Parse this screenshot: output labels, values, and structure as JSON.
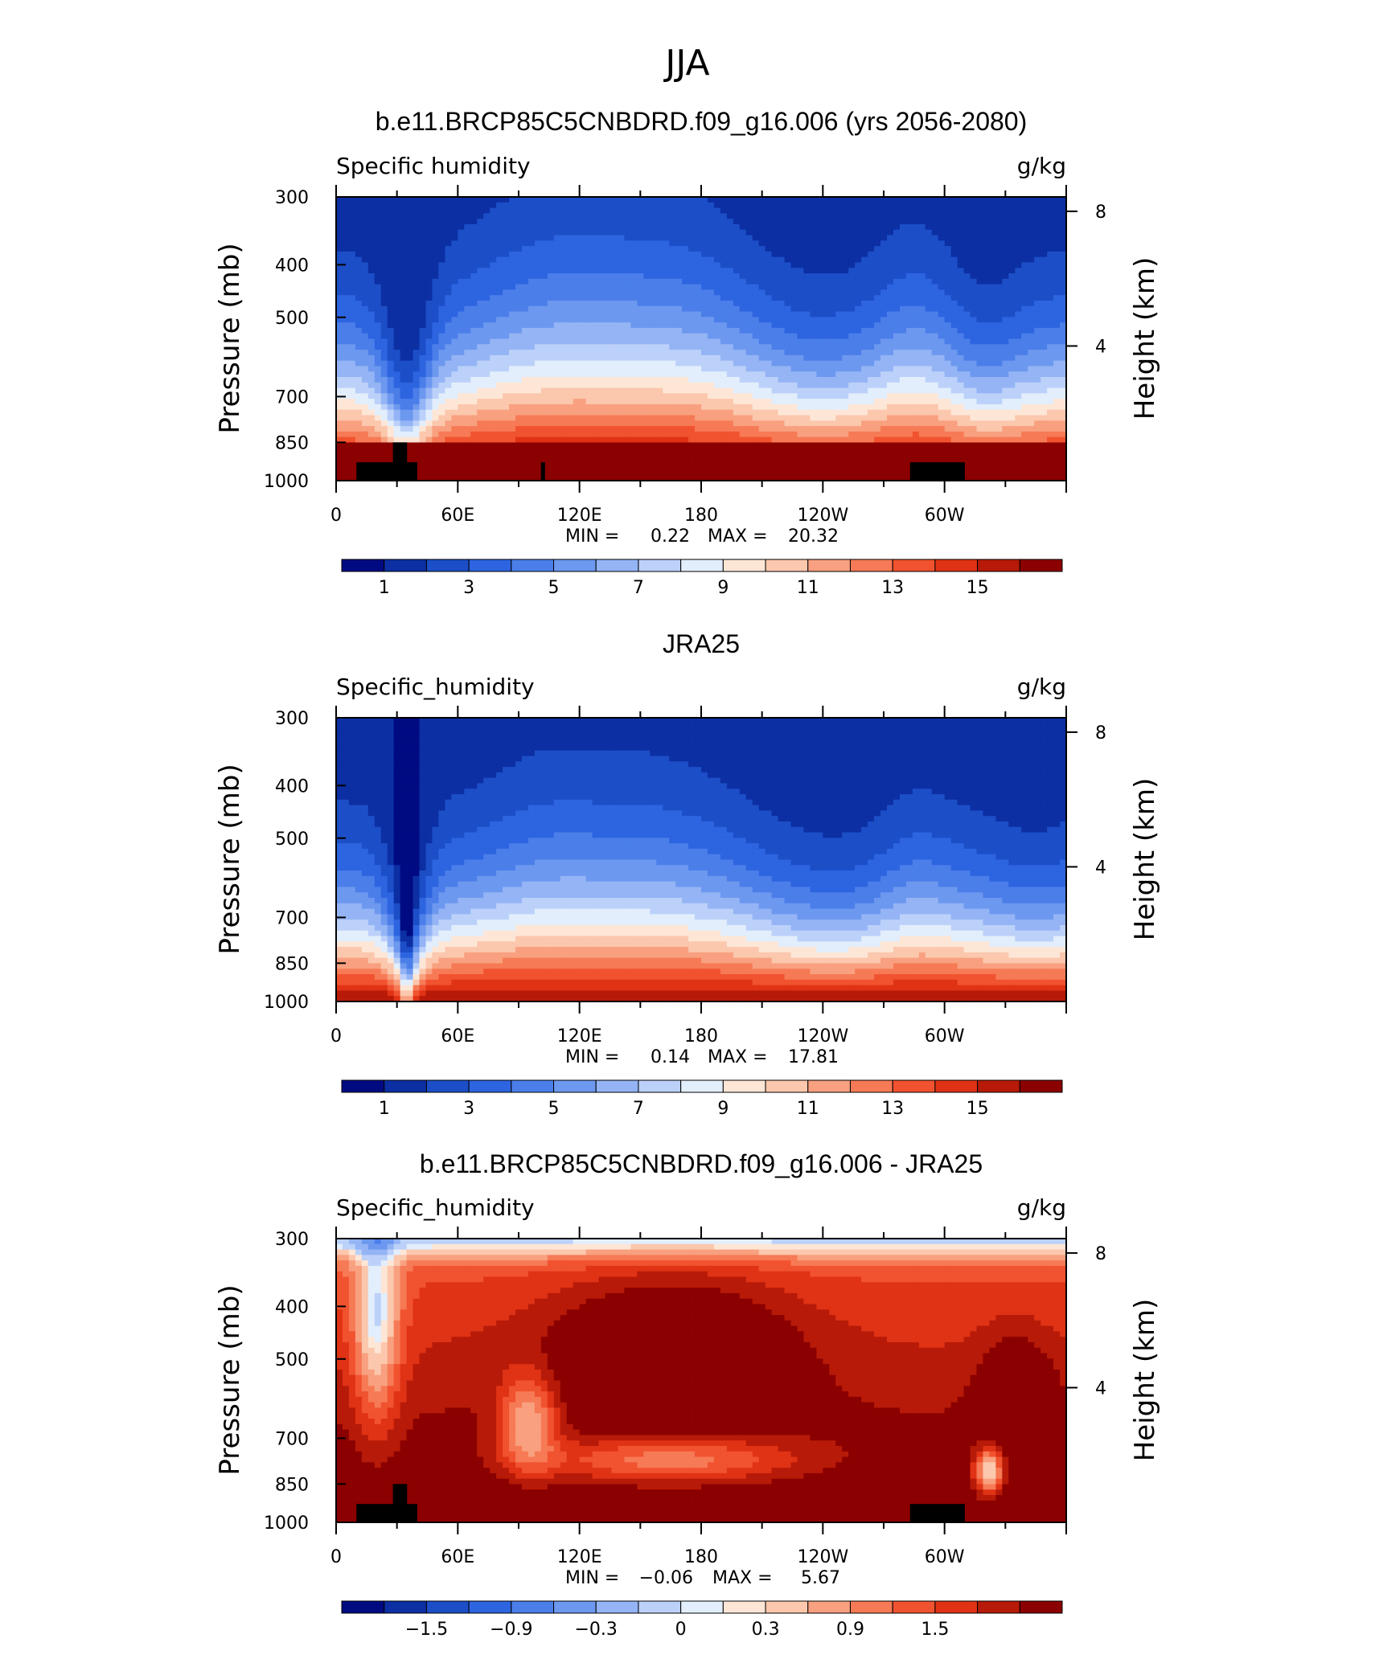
{
  "figure": {
    "season": "JJA",
    "left_axis_label": "Pressure (mb)",
    "right_axis_label": "Height (km)"
  },
  "colors": {
    "blue_red_17": [
      "#000b82",
      "#0c2fa3",
      "#1c4ec7",
      "#2d64e0",
      "#4b7ee9",
      "#6d98ef",
      "#94b4f5",
      "#bcd1f9",
      "#e2eefc",
      "#fde6d6",
      "#fbc7ad",
      "#f8a07f",
      "#f67a55",
      "#f1522f",
      "#e03215",
      "#b71a08",
      "#8b0000"
    ]
  },
  "chart_data": [
    {
      "type": "heatmap",
      "title": "b.e11.BRCP85C5CNBDRD.f09_g16.006 (yrs 2056-2080)",
      "left_label": "Specific humidity",
      "right_label": "g/kg",
      "xlabel": "",
      "ylabel": "Pressure (mb)",
      "ylabel_right": "Height (km)",
      "x_ticks": [
        "0",
        "60E",
        "120E",
        "180",
        "120W",
        "60W"
      ],
      "y_ticks": [
        "300",
        "400",
        "500",
        "700",
        "850",
        "1000"
      ],
      "height_ticks": [
        "8",
        "4"
      ],
      "stats": {
        "min_label": "MIN =",
        "min": "0.22",
        "max_label": "MAX =",
        "max": "20.32"
      },
      "colorbar_levels": [
        0.0,
        1.0,
        2.0,
        3.0,
        4.0,
        5.0,
        6.0,
        7.0,
        8.0,
        9.0,
        10.0,
        11.0,
        12.0,
        13.0,
        14.0,
        15.0
      ],
      "colorbar_labels": [
        "1",
        "3",
        "5",
        "7",
        "9",
        "11",
        "13",
        "15"
      ],
      "field": "model"
    },
    {
      "type": "heatmap",
      "title": "JRA25",
      "left_label": "Specific_humidity",
      "right_label": "g/kg",
      "xlabel": "",
      "ylabel": "Pressure (mb)",
      "ylabel_right": "Height (km)",
      "x_ticks": [
        "0",
        "60E",
        "120E",
        "180",
        "120W",
        "60W"
      ],
      "y_ticks": [
        "300",
        "400",
        "500",
        "700",
        "850",
        "1000"
      ],
      "height_ticks": [
        "8",
        "4"
      ],
      "stats": {
        "min_label": "MIN =",
        "min": "0.14",
        "max_label": "MAX =",
        "max": "17.81"
      },
      "colorbar_levels": [
        0.0,
        1.0,
        2.0,
        3.0,
        4.0,
        5.0,
        6.0,
        7.0,
        8.0,
        9.0,
        10.0,
        11.0,
        12.0,
        13.0,
        14.0,
        15.0
      ],
      "colorbar_labels": [
        "1",
        "3",
        "5",
        "7",
        "9",
        "11",
        "13",
        "15"
      ],
      "field": "obs"
    },
    {
      "type": "heatmap",
      "title": "b.e11.BRCP85C5CNBDRD.f09_g16.006 - JRA25",
      "left_label": "Specific_humidity",
      "right_label": "g/kg",
      "xlabel": "",
      "ylabel": "Pressure (mb)",
      "ylabel_right": "Height (km)",
      "x_ticks": [
        "0",
        "60E",
        "120E",
        "180",
        "120W",
        "60W"
      ],
      "y_ticks": [
        "300",
        "400",
        "500",
        "700",
        "850",
        "1000"
      ],
      "height_ticks": [
        "8",
        "4"
      ],
      "stats": {
        "min_label": "MIN =",
        "min": "−0.06",
        "max_label": "MAX =",
        "max": "5.67"
      },
      "colorbar_levels": [
        -2.1,
        -1.8,
        -1.5,
        -1.2,
        -0.9,
        -0.6,
        -0.3,
        0.0,
        0.15,
        0.3,
        0.6,
        0.9,
        1.2,
        1.5,
        1.8,
        2.1
      ],
      "colorbar_labels": [
        "−1.5",
        "−0.9",
        "−0.3",
        "0",
        "0.3",
        "0.9",
        "1.5"
      ],
      "field": "diff"
    }
  ]
}
